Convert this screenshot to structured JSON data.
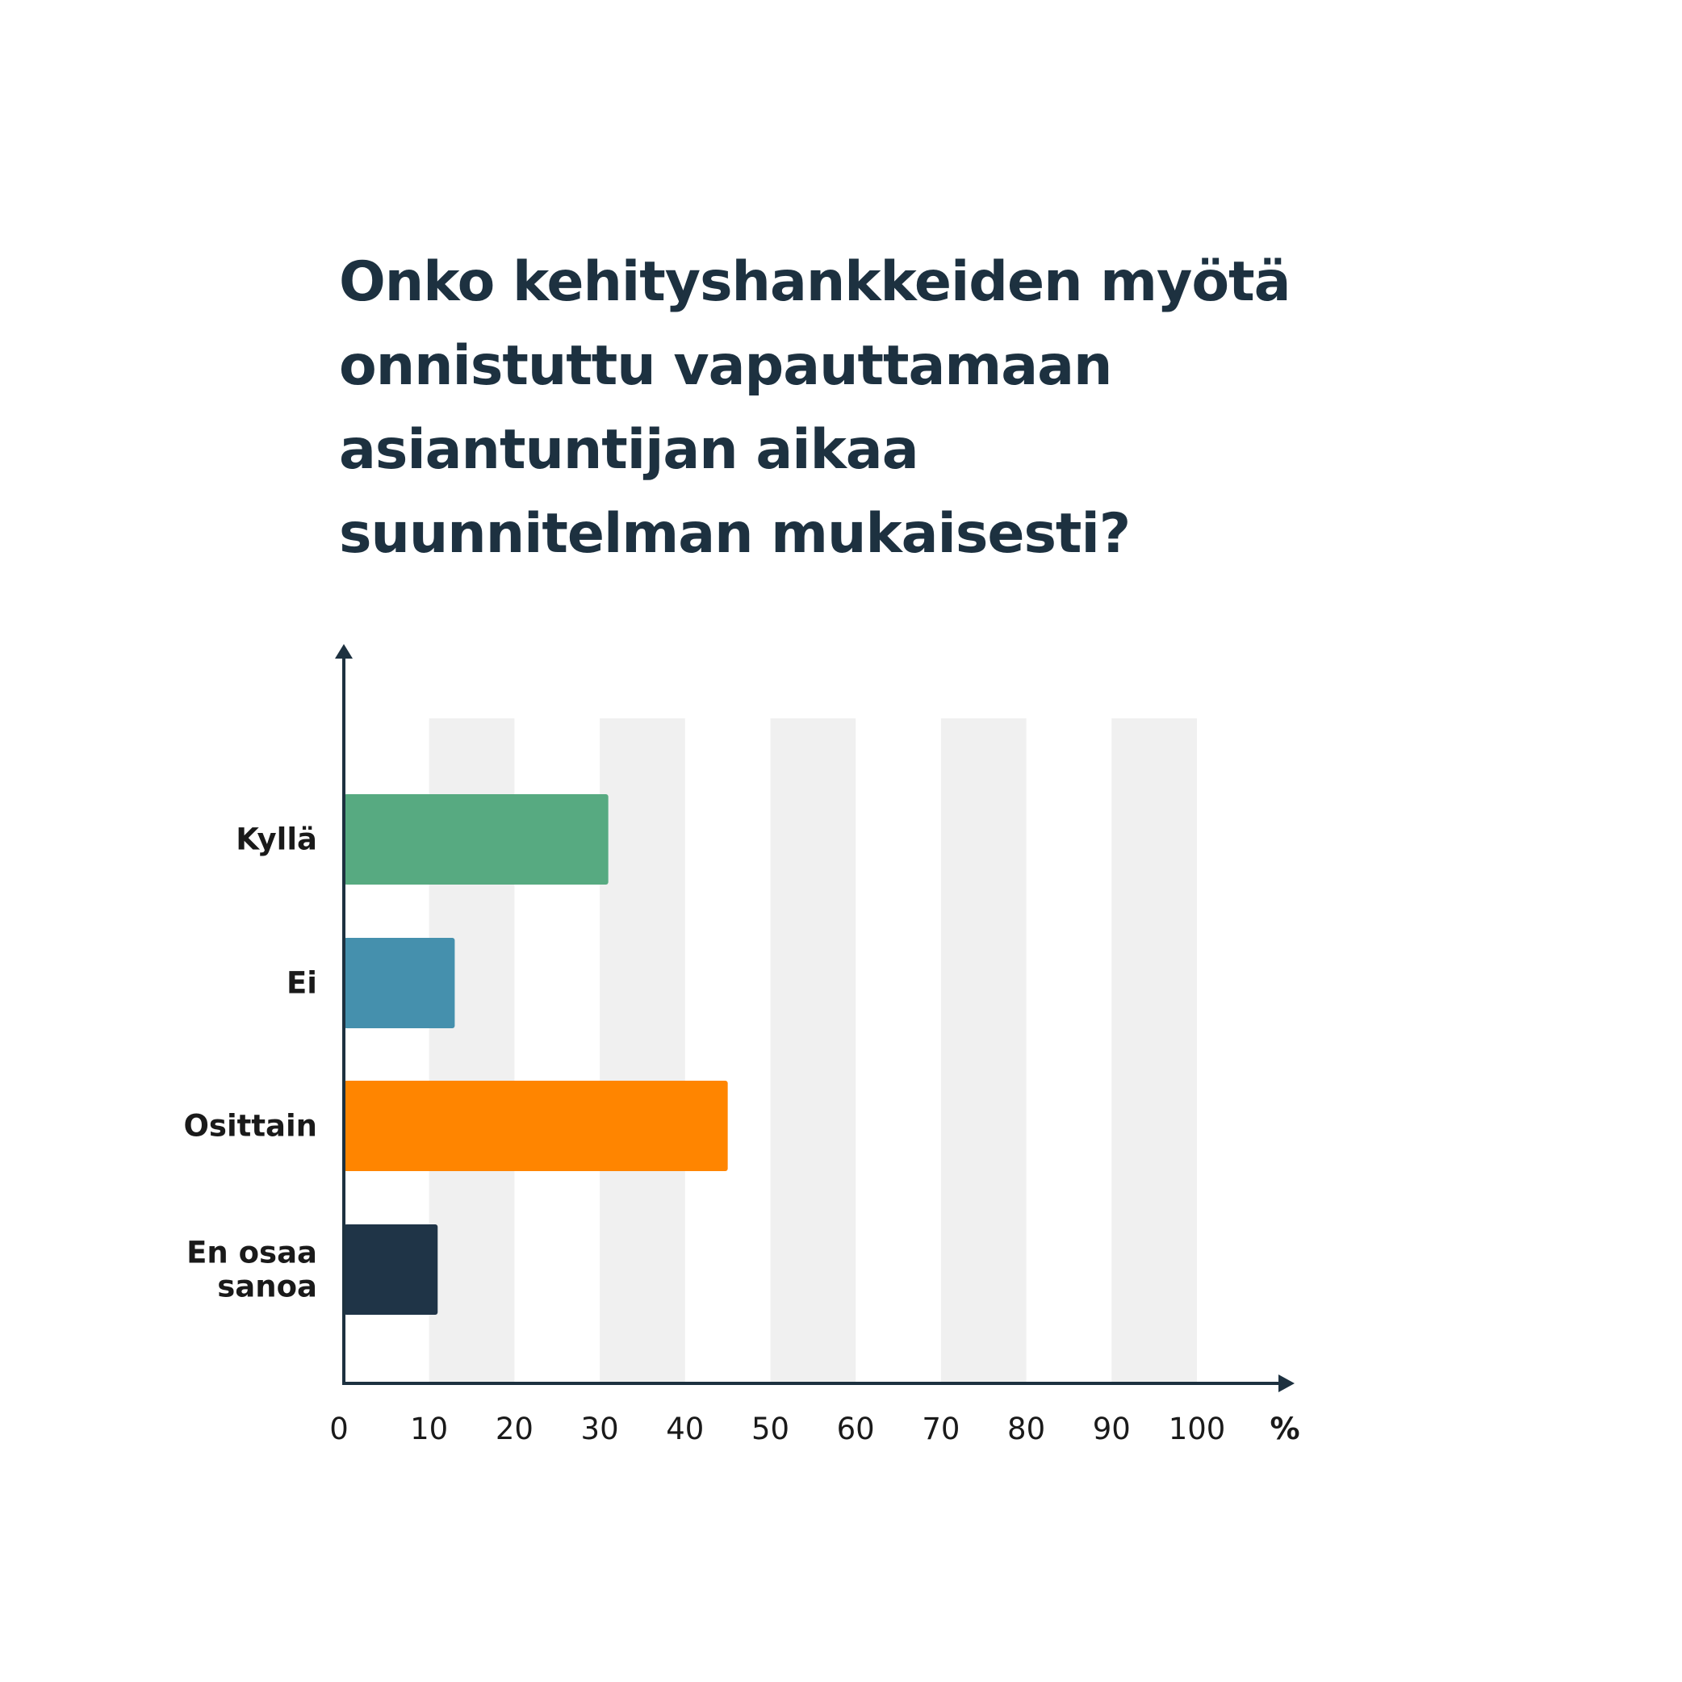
{
  "title_lines": [
    "Onko kehityshankkeiden myötä",
    "onnistuttu vapauttamaan",
    "asiantuntijan aikaa",
    "suunnitelman mukaisesti?"
  ],
  "chart_data": {
    "type": "bar",
    "orientation": "horizontal",
    "title": "Onko kehityshankkeiden myötä onnistuttu vapauttamaan asiantuntijan aikaa suunnitelman mukaisesti?",
    "categories": [
      [
        "Kyllä"
      ],
      [
        "Ei"
      ],
      [
        "Osittain"
      ],
      [
        "En osaa",
        "sanoa"
      ]
    ],
    "values": [
      31,
      13,
      45,
      11
    ],
    "colors": [
      "#57aa81",
      "#4590ad",
      "#ff8500",
      "#1f3447"
    ],
    "x_ticks": [
      "0",
      "10",
      "20",
      "30",
      "40",
      "50",
      "60",
      "70",
      "80",
      "90",
      "100"
    ],
    "xlim": [
      0,
      100
    ],
    "x_unit": "%",
    "grid": "alternating vertical bands",
    "band_color": "#f0f0f0",
    "axis_color": "#1d3140",
    "label_color": "#1a1a1a"
  }
}
